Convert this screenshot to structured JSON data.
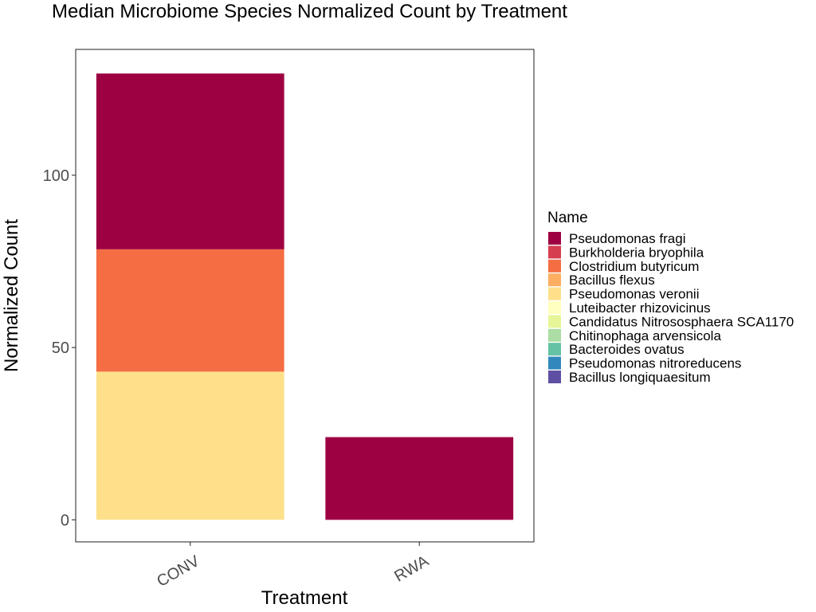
{
  "chart_data": {
    "type": "bar",
    "stacked": true,
    "title": "Median Microbiome Species Normalized Count by Treatment",
    "xlabel": "Treatment",
    "ylabel": "Normalized Count",
    "categories": [
      "CONV",
      "RWA"
    ],
    "ylim": [
      -6.4,
      136.5
    ],
    "yticks": [
      0,
      50,
      100
    ],
    "grid": false,
    "legend": {
      "title": "Name",
      "position": "right",
      "entries": [
        {
          "name": "Pseudomonas fragi",
          "color": "#9E0142"
        },
        {
          "name": "Burkholderia bryophila",
          "color": "#D53E4F"
        },
        {
          "name": "Clostridium butyricum",
          "color": "#F46D43"
        },
        {
          "name": "Bacillus flexus",
          "color": "#FDAE61"
        },
        {
          "name": "Pseudomonas veronii",
          "color": "#FEE08B"
        },
        {
          "name": "Luteibacter rhizovicinus",
          "color": "#FFFFBF"
        },
        {
          "name": "Candidatus Nitrososphaera SCA1170",
          "color": "#E6F598"
        },
        {
          "name": "Chitinophaga arvensicola",
          "color": "#ABDDA4"
        },
        {
          "name": "Bacteroides ovatus",
          "color": "#66C2A5"
        },
        {
          "name": "Pseudomonas nitroreducens",
          "color": "#3288BD"
        },
        {
          "name": "Bacillus longiquaesitum",
          "color": "#5E4FA2"
        }
      ]
    },
    "series": [
      {
        "name": "Pseudomonas fragi",
        "values": [
          51,
          24
        ]
      },
      {
        "name": "Clostridium butyricum",
        "values": [
          35.5,
          0
        ]
      },
      {
        "name": "Pseudomonas veronii",
        "values": [
          43,
          0
        ]
      }
    ]
  }
}
